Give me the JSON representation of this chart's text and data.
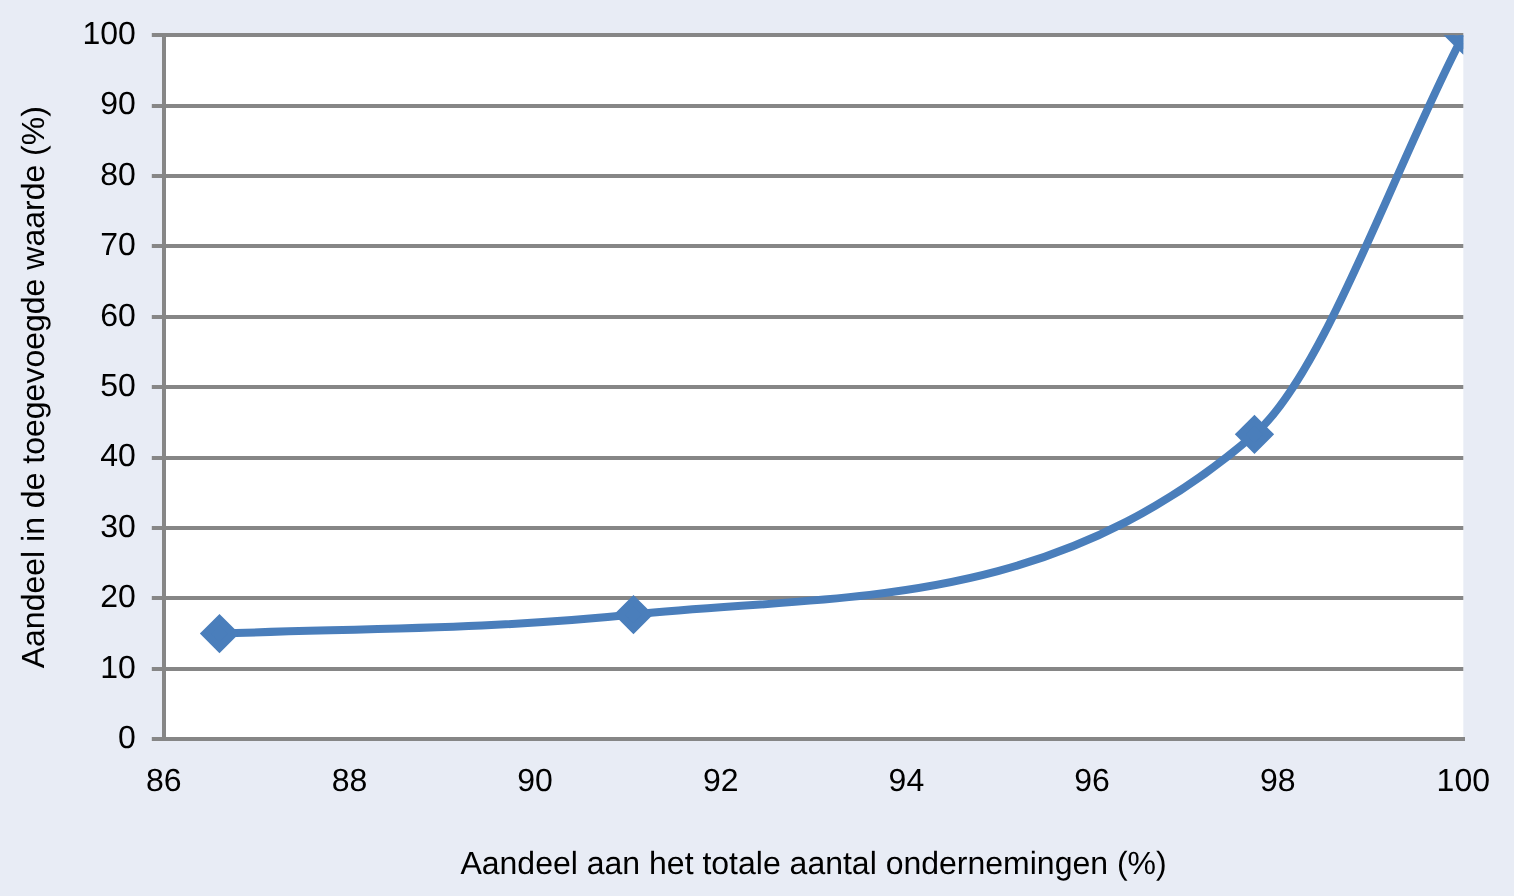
{
  "chart_data": {
    "type": "line",
    "xlabel": "Aandeel aan het totale aantal ondernemingen (%)",
    "ylabel": "Aandeel in de toegevoegde waarde (%)",
    "x": [
      86.6,
      91.06,
      97.75,
      100
    ],
    "series": [
      {
        "color": "#4a7ebb",
        "values": [
          15,
          17.7,
          43.3,
          100
        ]
      }
    ],
    "xlim": [
      86,
      100
    ],
    "xticks": [
      86,
      88,
      90,
      92,
      94,
      96,
      98,
      100
    ],
    "ylim": [
      0,
      100
    ],
    "yticks": [
      0,
      10,
      20,
      30,
      40,
      50,
      60,
      70,
      80,
      90,
      100
    ],
    "grid": "y",
    "legend": false,
    "marker": "diamond",
    "line_style": "solid"
  }
}
